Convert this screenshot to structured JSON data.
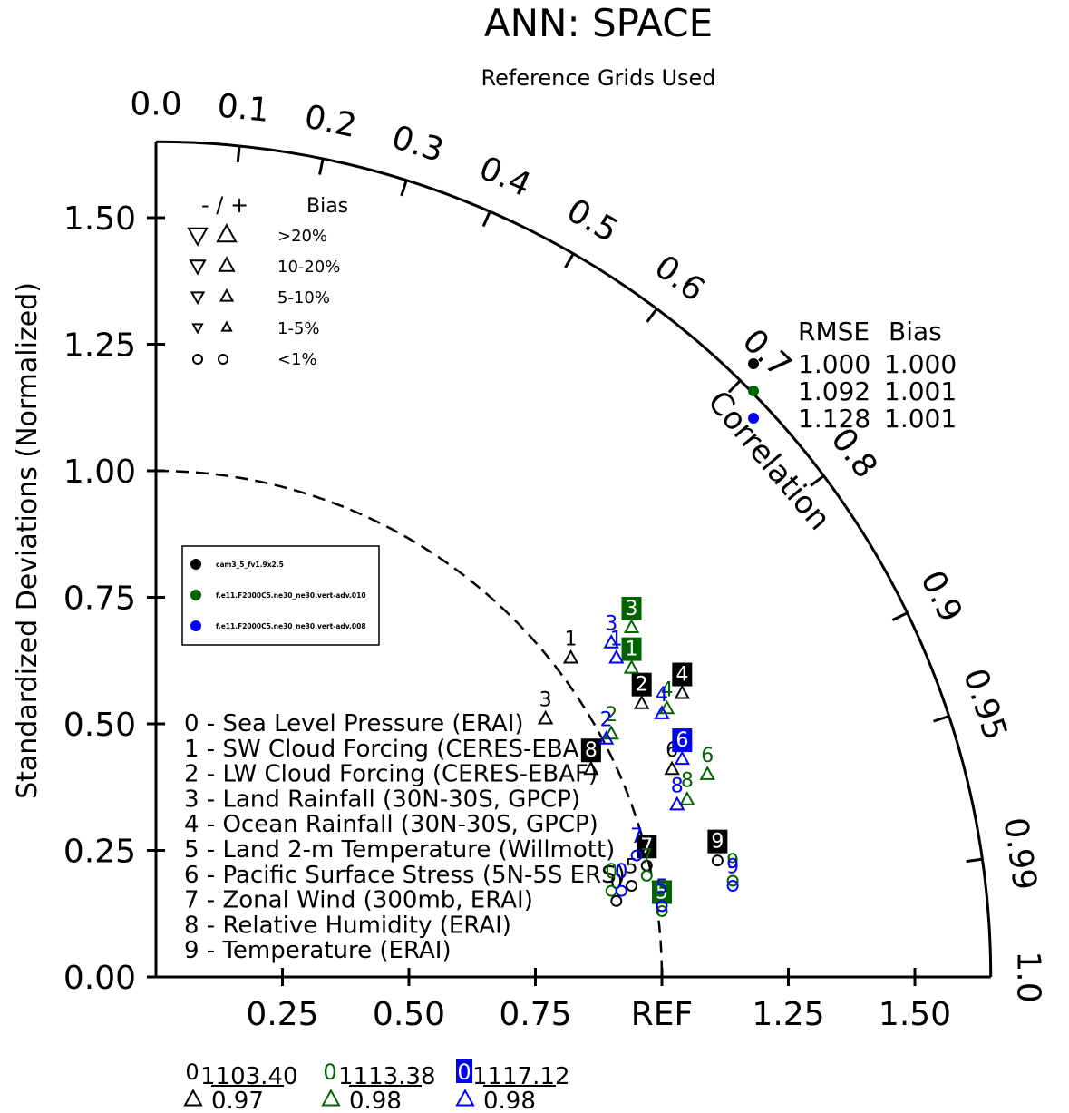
{
  "header": {
    "title": "ANN: SPACE",
    "subtitle": "Reference Grids Used"
  },
  "colors": {
    "black": "#000000",
    "green": "#006400",
    "blue": "#0000ff"
  },
  "chart_data": {
    "type": "scatter",
    "subtype": "taylor-diagram",
    "ylabel": "Standardized Deviations (Normalized)",
    "arc_label": "Correlation",
    "std_ticks": [
      "0.00",
      "0.25",
      "0.50",
      "0.75",
      "1.00",
      "1.25",
      "1.50"
    ],
    "x_ticks": [
      "0.25",
      "0.50",
      "0.75",
      "REF",
      "1.25",
      "1.50"
    ],
    "corr_ticks": [
      "0.0",
      "0.1",
      "0.2",
      "0.3",
      "0.4",
      "0.5",
      "0.6",
      "0.7",
      "0.8",
      "0.9",
      "0.95",
      "0.99",
      "1.0"
    ],
    "std_max": 1.65,
    "bias_legend": {
      "header": [
        "- / +",
        "Bias"
      ],
      "rows": [
        ">20%",
        "10-20%",
        "5-10%",
        "1-5%",
        "<1%"
      ]
    },
    "rmse_table": {
      "header": [
        "RMSE",
        "Bias"
      ],
      "rows": [
        {
          "rmse": "1.000",
          "bias": "1.000"
        },
        {
          "rmse": "1.092",
          "bias": "1.001"
        },
        {
          "rmse": "1.128",
          "bias": "1.001"
        }
      ]
    },
    "series": [
      {
        "name": "cam3_5_fv1.9x2.5",
        "color": "#000000",
        "summary": {
          "score": "103.40",
          "corr": "0.97"
        }
      },
      {
        "name": "f.e11.F2000C5.ne30_ne30.vert-adv.010",
        "color": "#006400",
        "summary": {
          "score": "113.38",
          "corr": "0.98"
        }
      },
      {
        "name": "f.e11.F2000C5.ne30_ne30.vert-adv.008",
        "color": "#0000ff",
        "summary": {
          "score": "117.12",
          "corr": "0.98"
        }
      }
    ],
    "variables": [
      "0 - Sea Level Pressure (ERAI)",
      "1 - SW Cloud Forcing (CERES-EBAF)",
      "2 - LW Cloud Forcing (CERES-EBAF)",
      "3 - Land Rainfall (30N-30S, GPCP)",
      "4 - Ocean Rainfall (30N-30S, GPCP)",
      "5 - Land 2-m Temperature (Willmott)",
      "6 - Pacific Surface Stress (5N-5S ERS)",
      "7 - Zonal Wind (300mb, ERAI)",
      "8 - Relative Humidity (ERAI)",
      "9 - Temperature (ERAI)"
    ],
    "points": [
      {
        "s": 0,
        "v": "0",
        "x": 0.91,
        "y": 0.15,
        "m": "circle",
        "box": false
      },
      {
        "s": 0,
        "v": "1",
        "x": 0.82,
        "y": 0.63,
        "m": "up",
        "box": false
      },
      {
        "s": 0,
        "v": "2",
        "x": 0.96,
        "y": 0.54,
        "m": "up",
        "box": true
      },
      {
        "s": 0,
        "v": "3",
        "x": 0.77,
        "y": 0.51,
        "m": "up",
        "box": false
      },
      {
        "s": 0,
        "v": "4",
        "x": 1.04,
        "y": 0.56,
        "m": "up",
        "box": true
      },
      {
        "s": 0,
        "v": "5",
        "x": 0.94,
        "y": 0.18,
        "m": "circle",
        "box": false
      },
      {
        "s": 0,
        "v": "6",
        "x": 1.02,
        "y": 0.41,
        "m": "up",
        "box": false
      },
      {
        "s": 0,
        "v": "7",
        "x": 0.97,
        "y": 0.22,
        "m": "circle",
        "box": true
      },
      {
        "s": 0,
        "v": "8",
        "x": 0.86,
        "y": 0.41,
        "m": "up",
        "box": true
      },
      {
        "s": 0,
        "v": "9",
        "x": 1.11,
        "y": 0.23,
        "m": "circle",
        "box": true
      },
      {
        "s": 1,
        "v": "0",
        "x": 0.9,
        "y": 0.17,
        "m": "circle",
        "box": false
      },
      {
        "s": 1,
        "v": "1",
        "x": 0.94,
        "y": 0.61,
        "m": "up",
        "box": true
      },
      {
        "s": 1,
        "v": "2",
        "x": 0.9,
        "y": 0.48,
        "m": "up",
        "box": false
      },
      {
        "s": 1,
        "v": "3",
        "x": 0.94,
        "y": 0.69,
        "m": "up",
        "box": true
      },
      {
        "s": 1,
        "v": "4",
        "x": 1.01,
        "y": 0.53,
        "m": "up",
        "box": false
      },
      {
        "s": 1,
        "v": "5",
        "x": 1.0,
        "y": 0.13,
        "m": "circle",
        "box": true
      },
      {
        "s": 1,
        "v": "6",
        "x": 1.09,
        "y": 0.4,
        "m": "up",
        "box": false
      },
      {
        "s": 1,
        "v": "7",
        "x": 0.97,
        "y": 0.2,
        "m": "circle",
        "box": false
      },
      {
        "s": 1,
        "v": "8",
        "x": 1.05,
        "y": 0.35,
        "m": "up",
        "box": false
      },
      {
        "s": 1,
        "v": "9",
        "x": 1.14,
        "y": 0.19,
        "m": "circle",
        "box": false
      },
      {
        "s": 2,
        "v": "0",
        "x": 0.92,
        "y": 0.17,
        "m": "circle",
        "box": false
      },
      {
        "s": 2,
        "v": "1",
        "x": 0.91,
        "y": 0.63,
        "m": "up",
        "box": false
      },
      {
        "s": 2,
        "v": "2",
        "x": 0.89,
        "y": 0.47,
        "m": "up",
        "box": false
      },
      {
        "s": 2,
        "v": "3",
        "x": 0.9,
        "y": 0.66,
        "m": "up",
        "box": false
      },
      {
        "s": 2,
        "v": "4",
        "x": 1.0,
        "y": 0.52,
        "m": "up",
        "box": false
      },
      {
        "s": 2,
        "v": "5",
        "x": 1.0,
        "y": 0.14,
        "m": "circle",
        "box": false
      },
      {
        "s": 2,
        "v": "6",
        "x": 1.04,
        "y": 0.43,
        "m": "up",
        "box": true
      },
      {
        "s": 2,
        "v": "7",
        "x": 0.95,
        "y": 0.24,
        "m": "circle",
        "box": false
      },
      {
        "s": 2,
        "v": "8",
        "x": 1.03,
        "y": 0.34,
        "m": "up",
        "box": false
      },
      {
        "s": 2,
        "v": "9",
        "x": 1.14,
        "y": 0.18,
        "m": "circle",
        "box": false
      }
    ]
  }
}
